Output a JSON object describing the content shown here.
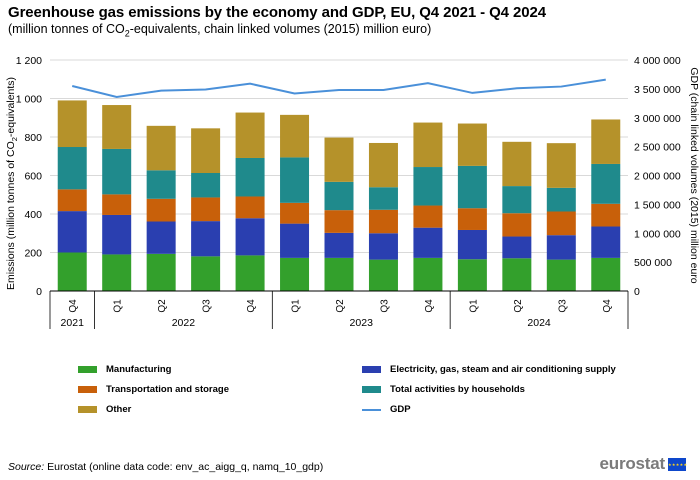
{
  "header": {
    "title": "Greenhouse gas emissions by the economy and GDP, EU, Q4 2021 - Q4 2024",
    "subtitle_pre": "(million tonnes of CO",
    "subtitle_sub": "2",
    "subtitle_post": "-equivalents, chain linked volumes (2015) million euro)"
  },
  "chart_data": {
    "type": "bar",
    "stacked": true,
    "categories": [
      "Q4",
      "Q1",
      "Q2",
      "Q3",
      "Q4",
      "Q1",
      "Q2",
      "Q3",
      "Q4",
      "Q1",
      "Q2",
      "Q3",
      "Q4"
    ],
    "year_groups": [
      {
        "label": "2021",
        "count": 1
      },
      {
        "label": "2022",
        "count": 4
      },
      {
        "label": "2023",
        "count": 4
      },
      {
        "label": "2024",
        "count": 4
      }
    ],
    "series": [
      {
        "name": "Manufacturing",
        "color": "#33a02c",
        "values": [
          200,
          190,
          193,
          180,
          185,
          172,
          172,
          163,
          172,
          165,
          170,
          163,
          172
        ]
      },
      {
        "name": "Electricity, gas, steam and air conditioning supply",
        "color": "#2a3fb0",
        "values": [
          215,
          205,
          168,
          183,
          193,
          178,
          130,
          137,
          157,
          152,
          113,
          127,
          163
        ]
      },
      {
        "name": "Transportation and storage",
        "color": "#c8600a",
        "values": [
          113,
          107,
          118,
          123,
          113,
          108,
          118,
          122,
          115,
          113,
          121,
          123,
          118
        ]
      },
      {
        "name": "Total activities by households",
        "color": "#1f8a8c",
        "values": [
          220,
          236,
          148,
          127,
          200,
          236,
          147,
          117,
          200,
          220,
          141,
          123,
          207
        ]
      },
      {
        "name": "Other",
        "color": "#b5922a",
        "values": [
          242,
          228,
          231,
          232,
          236,
          221,
          230,
          230,
          231,
          220,
          230,
          232,
          231
        ]
      }
    ],
    "line_series": {
      "name": "GDP",
      "color": "#4a90d9",
      "axis": "right",
      "values": [
        3550000,
        3360000,
        3470000,
        3490000,
        3590000,
        3420000,
        3480000,
        3480000,
        3600000,
        3430000,
        3510000,
        3540000,
        3660000
      ]
    },
    "ylabel": "Emissions (million tonnes of CO2-equivalents)",
    "ylabel_pre": "Emissions (million tonnes of CO",
    "ylabel_sub": "2",
    "ylabel_post": "-equivalents)",
    "y2label": "GDP (chain linked volumes (2015) million euro",
    "ylim": [
      0,
      1200
    ],
    "y_ticks": [
      0,
      200,
      400,
      600,
      800,
      1000,
      1200
    ],
    "y_tick_labels": [
      "0",
      "200",
      "400",
      "600",
      "800",
      "1 000",
      "1 200"
    ],
    "y2lim": [
      0,
      4000000
    ],
    "y2_ticks": [
      0,
      500000,
      1000000,
      1500000,
      2000000,
      2500000,
      3000000,
      3500000,
      4000000
    ],
    "y2_tick_labels": [
      "0",
      "500 000",
      "1 000 000",
      "1 500 000",
      "2 000 000",
      "2 500 000",
      "3 000 000",
      "3 500 000",
      "4 000 000"
    ],
    "grid": true,
    "legend": "bottom"
  },
  "legend": {
    "items": [
      {
        "label": "Manufacturing",
        "color": "#33a02c",
        "kind": "box"
      },
      {
        "label": "Electricity, gas, steam and air conditioning supply",
        "color": "#2a3fb0",
        "kind": "box"
      },
      {
        "label": "Transportation and storage",
        "color": "#c8600a",
        "kind": "box"
      },
      {
        "label": "Total activities by households",
        "color": "#1f8a8c",
        "kind": "box"
      },
      {
        "label": "Other",
        "color": "#b5922a",
        "kind": "box"
      },
      {
        "label": "GDP",
        "color": "#4a90d9",
        "kind": "line"
      }
    ]
  },
  "footer": {
    "source_label": "Source:",
    "source_text": " Eurostat (online data code: env_ac_aigg_q, namq_10_gdp)",
    "logo_text": "eurostat",
    "flag_stars": "★★★★★"
  }
}
